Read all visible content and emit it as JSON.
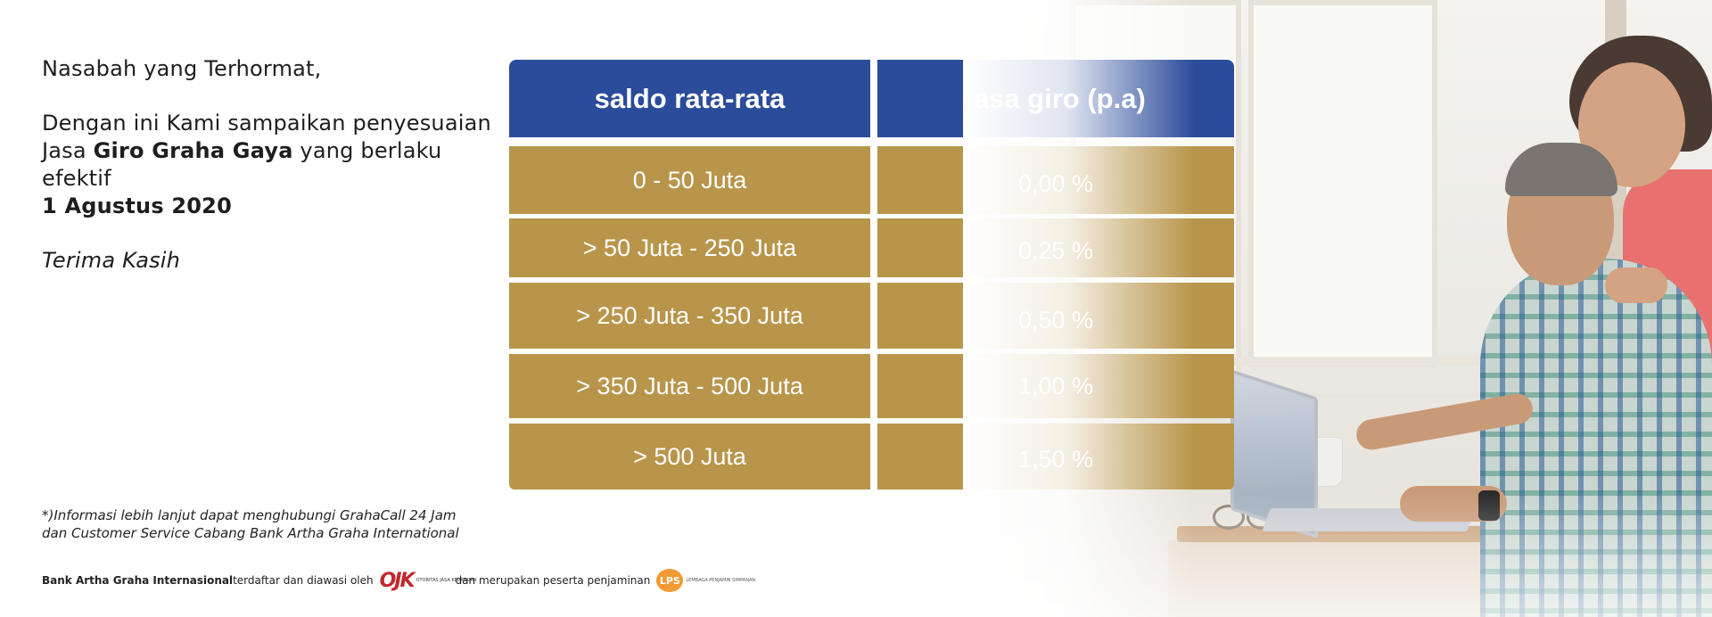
{
  "intro": {
    "greeting": "Nasabah yang Terhormat,",
    "line1": "Dengan ini Kami sampaikan penyesuaian",
    "line2_pre": "Jasa ",
    "line2_bold": "Giro Graha Gaya",
    "line2_post": " yang berlaku efektif",
    "effective_date": "1 Agustus 2020",
    "thanks": "Terima Kasih"
  },
  "table": {
    "headers": [
      "saldo rata-rata",
      "jasa giro (p.a)"
    ],
    "rows": [
      {
        "balance": "0 - 50 Juta",
        "rate": "0,00 %"
      },
      {
        "balance": "> 50 Juta - 250 Juta",
        "rate": "0,25 %"
      },
      {
        "balance": "> 250 Juta - 350 Juta",
        "rate": "0,50 %"
      },
      {
        "balance": "> 350 Juta - 500 Juta",
        "rate": "1,00 %"
      },
      {
        "balance": "> 500 Juta",
        "rate": "1,50 %"
      }
    ]
  },
  "footnote": {
    "line1": "*)Informasi lebih lanjut dapat menghubungi  GrahaCall 24 Jam",
    "line2": "dan Customer Service Cabang Bank Artha Graha International"
  },
  "footer": {
    "bank_name": "Bank Artha Graha Internasional",
    "text1": " terdaftar dan diawasi oleh ",
    "ojk_mark": "OJK",
    "ojk_text": "OTORITAS JASA KEUANGAN",
    "text2": " dan merupakan peserta penjaminan ",
    "lps_mark": "LPS",
    "lps_text": "LEMBAGA PENJAMIN SIMPANAN"
  },
  "colors": {
    "header_bg": "#2b4b9b",
    "cell_bg": "#b8954a",
    "ojk_red": "#c1272d",
    "lps_orange": "#f29a34"
  }
}
